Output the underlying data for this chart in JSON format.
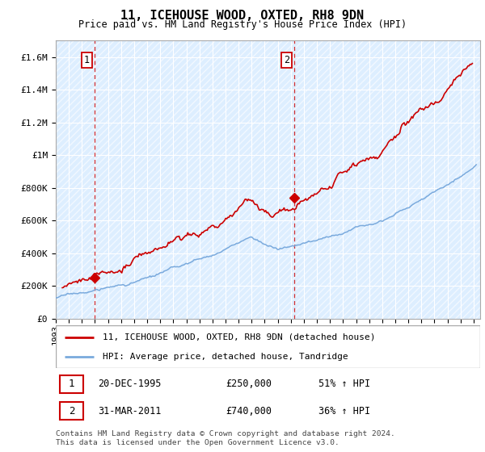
{
  "title": "11, ICEHOUSE WOOD, OXTED, RH8 9DN",
  "subtitle": "Price paid vs. HM Land Registry's House Price Index (HPI)",
  "ylabel_ticks": [
    "£0",
    "£200K",
    "£400K",
    "£600K",
    "£800K",
    "£1M",
    "£1.2M",
    "£1.4M",
    "£1.6M"
  ],
  "ylabel_values": [
    0,
    200000,
    400000,
    600000,
    800000,
    1000000,
    1200000,
    1400000,
    1600000
  ],
  "ylim": [
    0,
    1700000
  ],
  "xlim_start": 1993.0,
  "xlim_end": 2025.5,
  "hpi_color": "#7aaadd",
  "price_color": "#cc0000",
  "marker_color": "#cc0000",
  "sale1_x": 1995.97,
  "sale1_y": 250000,
  "sale1_label": "1",
  "sale2_x": 2011.25,
  "sale2_y": 740000,
  "sale2_label": "2",
  "legend_line1": "11, ICEHOUSE WOOD, OXTED, RH8 9DN (detached house)",
  "legend_line2": "HPI: Average price, detached house, Tandridge",
  "table_row1": [
    "1",
    "20-DEC-1995",
    "£250,000",
    "51% ↑ HPI"
  ],
  "table_row2": [
    "2",
    "31-MAR-2011",
    "£740,000",
    "36% ↑ HPI"
  ],
  "footer": "Contains HM Land Registry data © Crown copyright and database right 2024.\nThis data is licensed under the Open Government Licence v3.0.",
  "vline1_x": 1995.97,
  "vline2_x": 2011.25
}
